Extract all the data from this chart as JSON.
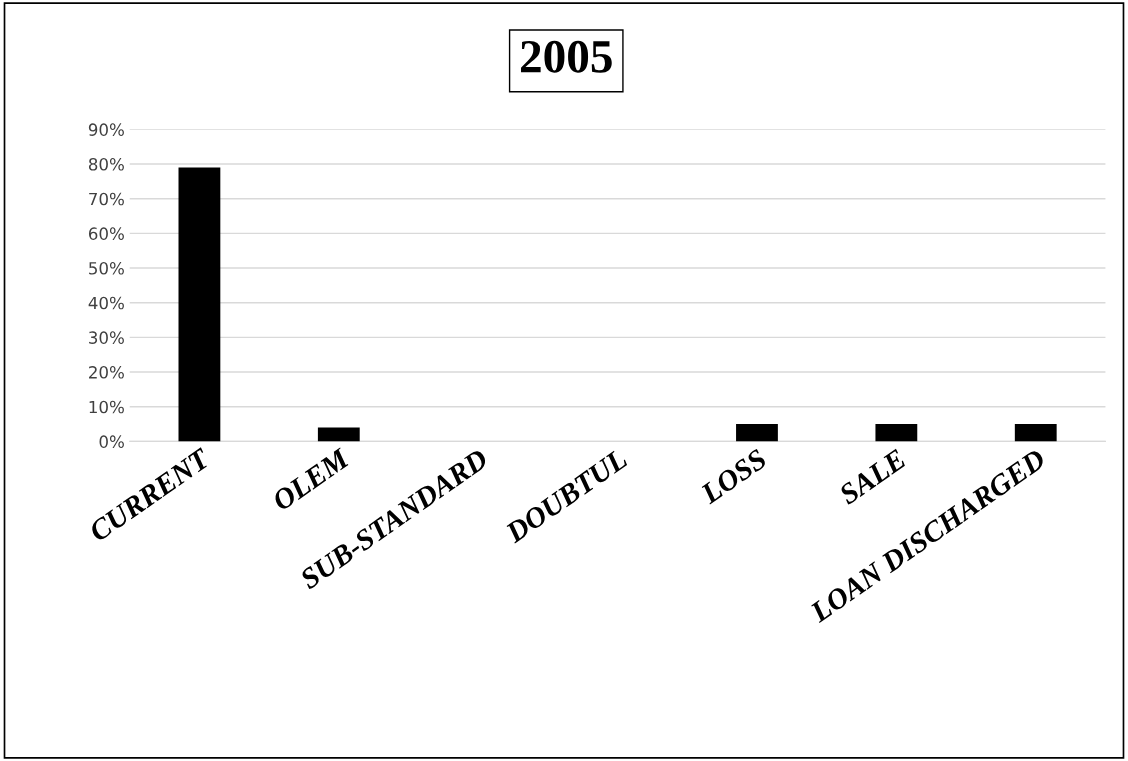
{
  "chart_data": {
    "type": "bar",
    "title": "2005",
    "categories": [
      "CURRENT",
      "OLEM",
      "SUB-STANDARD",
      "DOUBTUL",
      "LOSS",
      "SALE",
      "LOAN DISCHARGED"
    ],
    "values": [
      79,
      4,
      0,
      0,
      5,
      5,
      5
    ],
    "color": "#000000",
    "ylim": [
      0,
      90
    ],
    "yticks": [
      {
        "value": 0,
        "label": "0%"
      },
      {
        "value": 10,
        "label": "10%"
      },
      {
        "value": 20,
        "label": "20%"
      },
      {
        "value": 30,
        "label": "30%"
      },
      {
        "value": 40,
        "label": "40%"
      },
      {
        "value": 50,
        "label": "50%"
      },
      {
        "value": 60,
        "label": "60%"
      },
      {
        "value": 70,
        "label": "70%"
      },
      {
        "value": 80,
        "label": "80%"
      },
      {
        "value": 90,
        "label": "90%"
      }
    ],
    "grid": "y",
    "legend": false
  }
}
